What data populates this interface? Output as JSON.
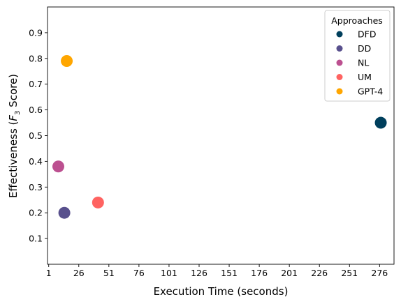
{
  "chart_data": {
    "type": "scatter",
    "title": "",
    "xlabel": "Execution Time (seconds)",
    "ylabel_main": "Effectiveness (",
    "ylabel_F": "F",
    "ylabel_sub": "3",
    "ylabel_tail": " Score)",
    "xlim": [
      0,
      288
    ],
    "ylim": [
      0.0,
      1.0
    ],
    "x_ticks": [
      1,
      26,
      51,
      76,
      101,
      126,
      151,
      176,
      201,
      226,
      251,
      276
    ],
    "y_ticks": [
      0.1,
      0.2,
      0.3,
      0.4,
      0.5,
      0.6,
      0.7,
      0.8,
      0.9
    ],
    "grid": false,
    "legend": {
      "title": "Approaches",
      "placement": "top-right"
    },
    "series": [
      {
        "name": "DFD",
        "color": "#003f5c",
        "x": [
          277
        ],
        "y": [
          0.55
        ]
      },
      {
        "name": "DD",
        "color": "#58508d",
        "x": [
          14
        ],
        "y": [
          0.2
        ]
      },
      {
        "name": "NL",
        "color": "#bc5090",
        "x": [
          9
        ],
        "y": [
          0.38
        ]
      },
      {
        "name": "UM",
        "color": "#ff6361",
        "x": [
          42
        ],
        "y": [
          0.24
        ]
      },
      {
        "name": "GPT-4",
        "color": "#ffa600",
        "x": [
          16
        ],
        "y": [
          0.79
        ]
      }
    ]
  }
}
